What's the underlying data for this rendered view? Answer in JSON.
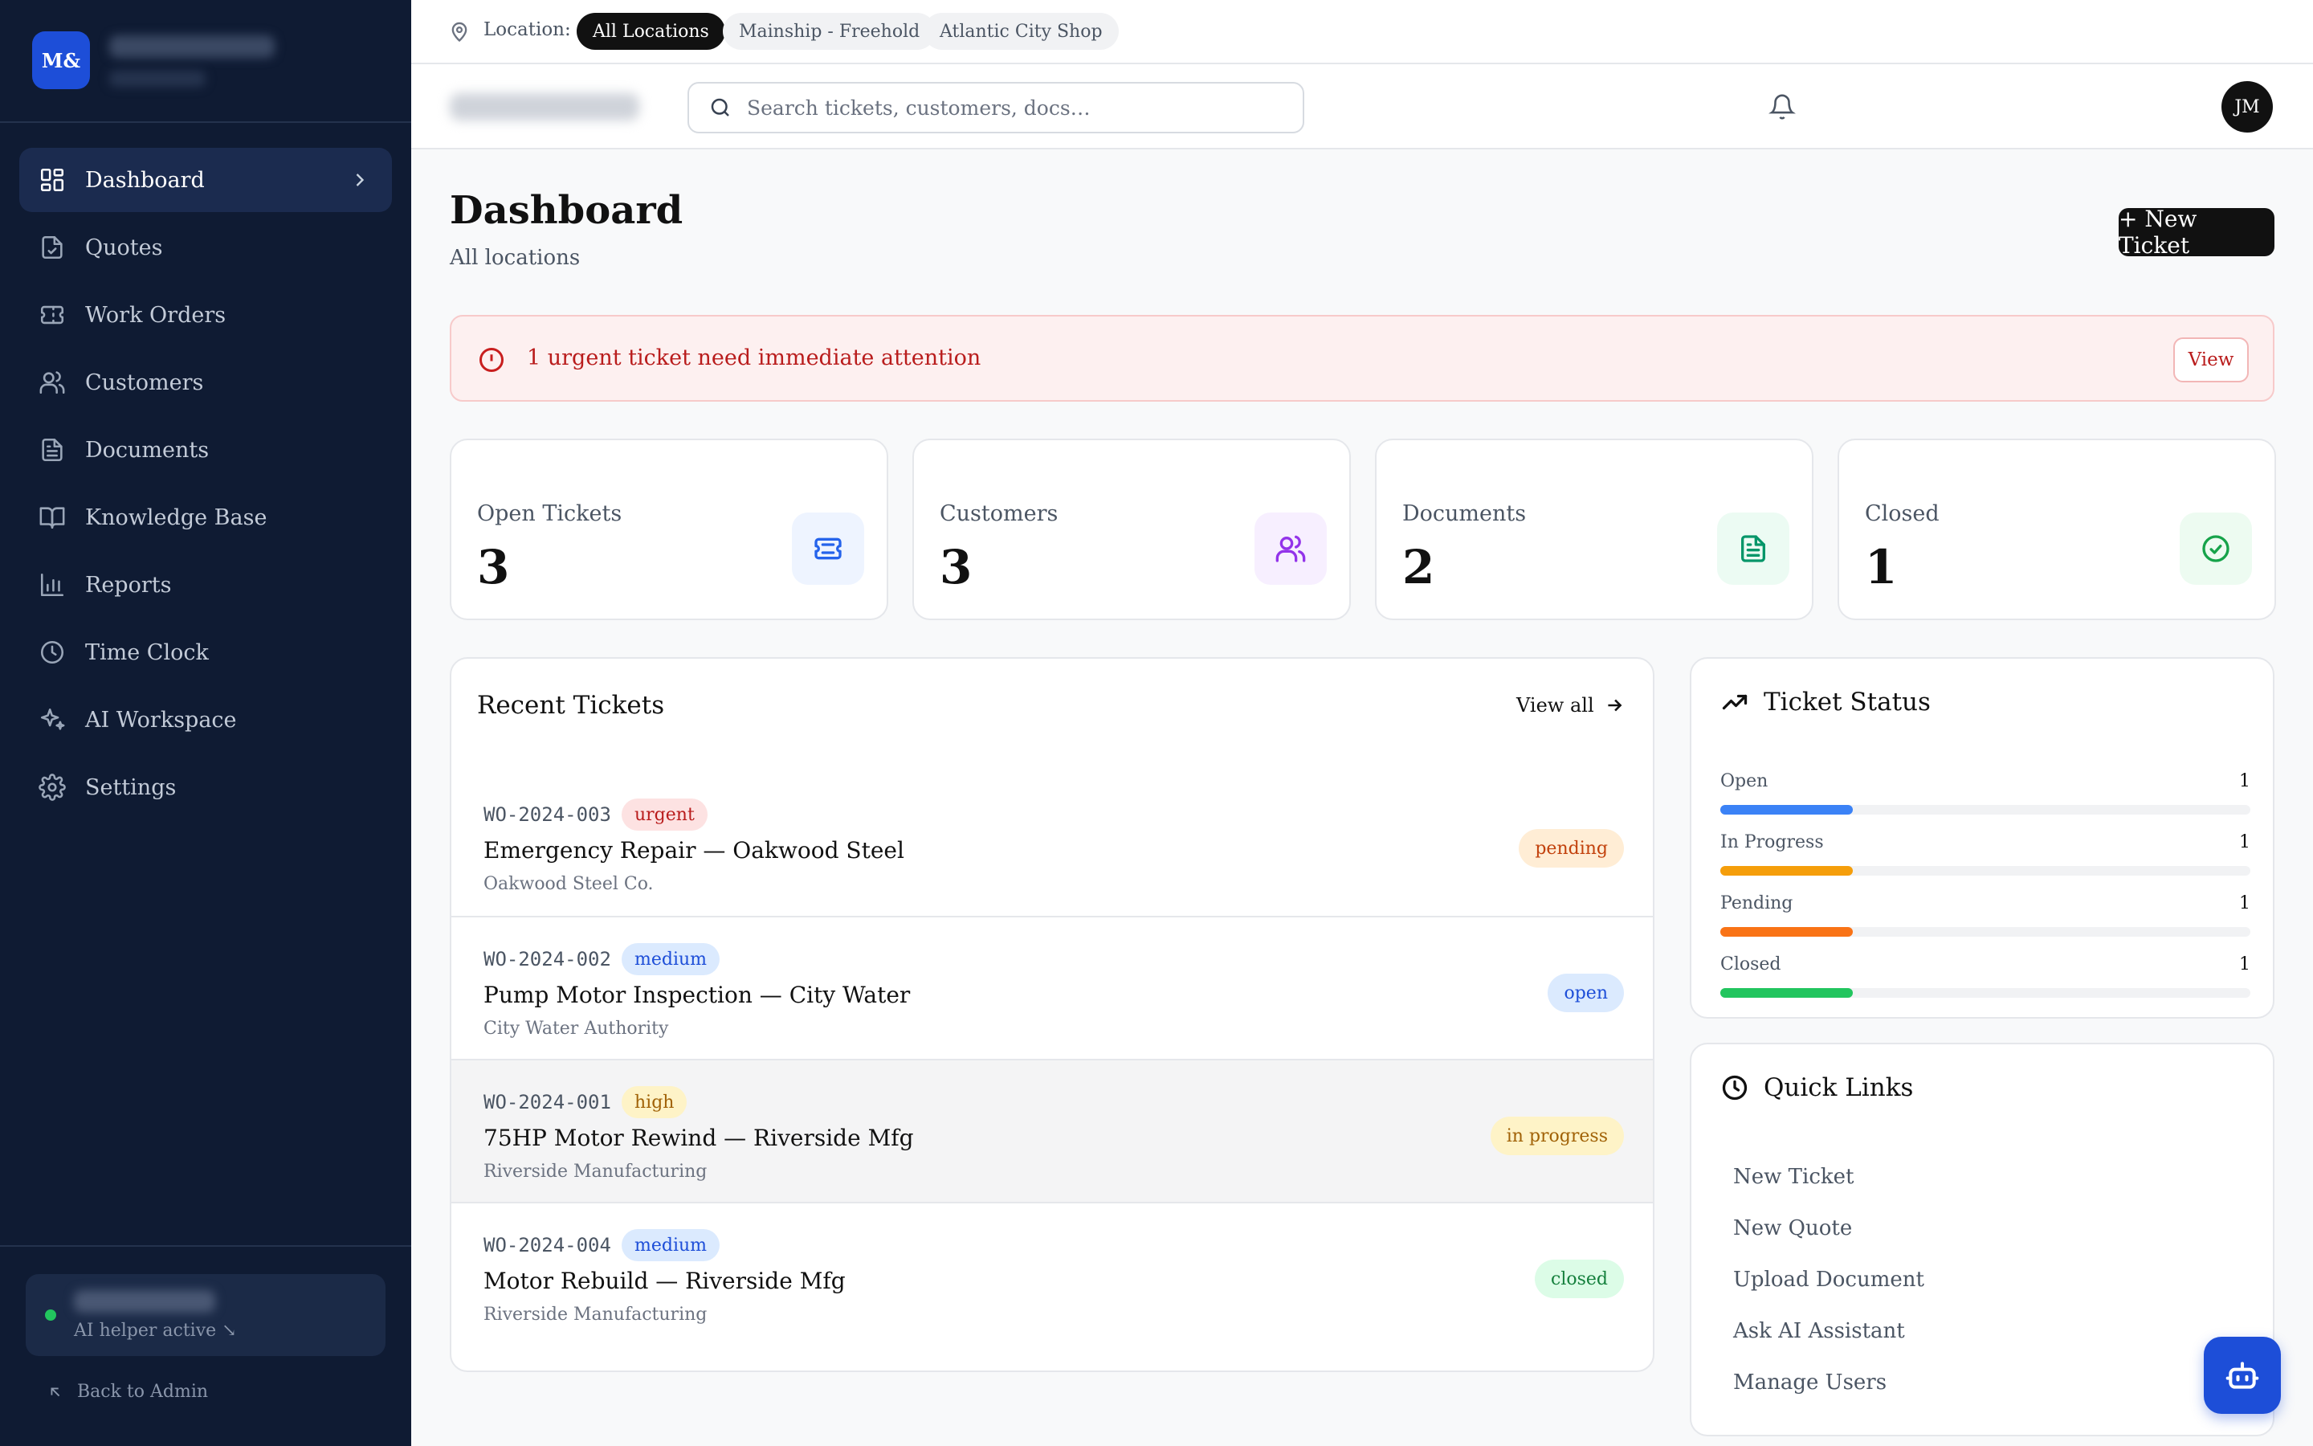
{
  "brand": {
    "logo_text": "M&"
  },
  "sidebar": {
    "items": [
      {
        "label": "Dashboard",
        "icon": "dashboard-grid-icon",
        "active": true
      },
      {
        "label": "Quotes",
        "icon": "quote-file-icon",
        "active": false
      },
      {
        "label": "Work Orders",
        "icon": "ticket-icon",
        "active": false
      },
      {
        "label": "Customers",
        "icon": "users-icon",
        "active": false
      },
      {
        "label": "Documents",
        "icon": "document-icon",
        "active": false
      },
      {
        "label": "Knowledge Base",
        "icon": "book-icon",
        "active": false
      },
      {
        "label": "Reports",
        "icon": "bar-chart-icon",
        "active": false
      },
      {
        "label": "Time Clock",
        "icon": "clock-icon",
        "active": false
      },
      {
        "label": "AI Workspace",
        "icon": "sparkles-icon",
        "active": false
      },
      {
        "label": "Settings",
        "icon": "gear-icon",
        "active": false
      }
    ],
    "ai_status": "AI helper active ↘",
    "back_link": "Back to Admin"
  },
  "location_bar": {
    "label": "Location:",
    "options": [
      "All Locations",
      "Mainship - Freehold",
      "Atlantic City Shop"
    ],
    "selected": "All Locations"
  },
  "header": {
    "search_placeholder": "Search tickets, customers, docs…",
    "avatar_initials": "JM"
  },
  "page": {
    "title": "Dashboard",
    "subtitle": "All locations",
    "new_ticket_label": "+ New Ticket"
  },
  "alert": {
    "text": "1 urgent ticket need immediate attention",
    "action_label": "View"
  },
  "stats": [
    {
      "label": "Open Tickets",
      "value": "3",
      "icon": "ticket-icon",
      "color": "#2563eb",
      "bg": "#eef4ff"
    },
    {
      "label": "Customers",
      "value": "3",
      "icon": "users-icon",
      "color": "#9333ea",
      "bg": "#f7efff"
    },
    {
      "label": "Documents",
      "value": "2",
      "icon": "document-icon",
      "color": "#059669",
      "bg": "#ecfbf3"
    },
    {
      "label": "Closed",
      "value": "1",
      "icon": "check-circle-icon",
      "color": "#16a34a",
      "bg": "#edfbf1"
    }
  ],
  "recent_tickets": {
    "title": "Recent Tickets",
    "view_all_label": "View all",
    "rows": [
      {
        "id": "WO-2024-003",
        "priority": "urgent",
        "title": "Emergency Repair — Oakwood Steel",
        "customer": "Oakwood Steel Co.",
        "status": "pending"
      },
      {
        "id": "WO-2024-002",
        "priority": "medium",
        "title": "Pump Motor Inspection — City Water",
        "customer": "City Water Authority",
        "status": "open"
      },
      {
        "id": "WO-2024-001",
        "priority": "high",
        "title": "75HP Motor Rewind — Riverside Mfg",
        "customer": "Riverside Manufacturing",
        "status": "in progress"
      },
      {
        "id": "WO-2024-004",
        "priority": "medium",
        "title": "Motor Rebuild — Riverside Mfg",
        "customer": "Riverside Manufacturing",
        "status": "closed"
      }
    ]
  },
  "ticket_status": {
    "title": "Ticket Status",
    "rows": [
      {
        "label": "Open",
        "count": "1",
        "fraction": 0.25,
        "color": "#3b82f6"
      },
      {
        "label": "In Progress",
        "count": "1",
        "fraction": 0.25,
        "color": "#f59e0b"
      },
      {
        "label": "Pending",
        "count": "1",
        "fraction": 0.25,
        "color": "#f97316"
      },
      {
        "label": "Closed",
        "count": "1",
        "fraction": 0.25,
        "color": "#22c55e"
      }
    ]
  },
  "quick_links": {
    "title": "Quick Links",
    "items": [
      "New Ticket",
      "New Quote",
      "Upload Document",
      "Ask AI Assistant",
      "Manage Users"
    ]
  },
  "colors": {
    "sidebar_bg": "#0f1b33",
    "accent": "#1d4ed8",
    "priority": {
      "urgent": {
        "bg": "#fde2e2",
        "fg": "#b91c1c"
      },
      "medium": {
        "bg": "#dbeafe",
        "fg": "#1d4ed8"
      },
      "high": {
        "bg": "#fef3c7",
        "fg": "#a16207"
      }
    },
    "status": {
      "pending": {
        "bg": "#ffedd5",
        "fg": "#c2410c"
      },
      "open": {
        "bg": "#dbeafe",
        "fg": "#1d4ed8"
      },
      "in progress": {
        "bg": "#fef3c7",
        "fg": "#a16207"
      },
      "closed": {
        "bg": "#dcfce7",
        "fg": "#15803d"
      }
    }
  },
  "fab": {
    "icon": "bot-icon"
  }
}
